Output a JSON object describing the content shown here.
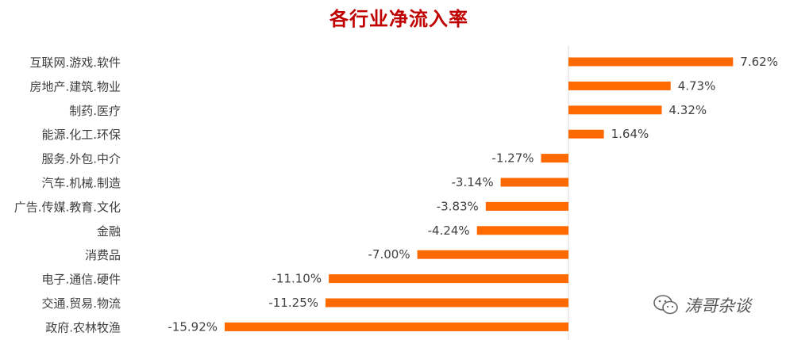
{
  "chart_data": {
    "type": "bar",
    "orientation": "horizontal",
    "title": "各行业净流入率",
    "categories": [
      "互联网.游戏.软件",
      "房地产.建筑.物业",
      "制药.医疗",
      "能源.化工.环保",
      "服务.外包.中介",
      "汽车.机械.制造",
      "广告.传媒.教育.文化",
      "金融",
      "消费品",
      "电子.通信.硬件",
      "交通.贸易.物流",
      "政府.农林牧渔"
    ],
    "values": [
      7.62,
      4.73,
      4.32,
      1.64,
      -1.27,
      -3.14,
      -3.83,
      -4.24,
      -7.0,
      -11.1,
      -11.25,
      -15.92
    ],
    "value_labels": [
      "7.62%",
      "4.73%",
      "4.32%",
      "1.64%",
      "-1.27%",
      "-3.14%",
      "-3.83%",
      "-4.24%",
      "-7.00%",
      "-11.10%",
      "-11.25%",
      "-15.92%"
    ],
    "unit": "%",
    "xlim": [
      -15.92,
      7.62
    ],
    "bar_color": "#ff6a00",
    "grid": false
  },
  "watermark": {
    "icon": "wechat-icon",
    "text": "涛哥杂谈"
  }
}
